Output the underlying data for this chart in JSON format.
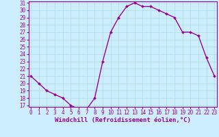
{
  "title": "Windchill (Refroidissement éolien,°C)",
  "x_values": [
    0,
    1,
    2,
    3,
    4,
    5,
    6,
    7,
    8,
    9,
    10,
    11,
    12,
    13,
    14,
    15,
    16,
    17,
    18,
    19,
    20,
    21,
    22,
    23
  ],
  "y_values": [
    21,
    20,
    19,
    18.5,
    18,
    17,
    16.5,
    16.5,
    18,
    23,
    27,
    29,
    30.5,
    31,
    30.5,
    30.5,
    30,
    29.5,
    29,
    27,
    27,
    26.5,
    23.5,
    21
  ],
  "ylim_min": 17,
  "ylim_max": 31,
  "xlim_min": 0,
  "xlim_max": 23,
  "yticks": [
    17,
    18,
    19,
    20,
    21,
    22,
    23,
    24,
    25,
    26,
    27,
    28,
    29,
    30,
    31
  ],
  "xticks": [
    0,
    1,
    2,
    3,
    4,
    5,
    6,
    7,
    8,
    9,
    10,
    11,
    12,
    13,
    14,
    15,
    16,
    17,
    18,
    19,
    20,
    21,
    22,
    23
  ],
  "line_color": "#990099",
  "marker_color": "#990099",
  "bg_color": "#cceeff",
  "grid_color": "#aadddd",
  "border_color": "#990099",
  "xlabel_color": "#990099",
  "tick_label_color": "#990099",
  "tick_label_size": 5.5,
  "xlabel_size": 6.5,
  "line_width": 1.0,
  "marker_size": 2.0
}
